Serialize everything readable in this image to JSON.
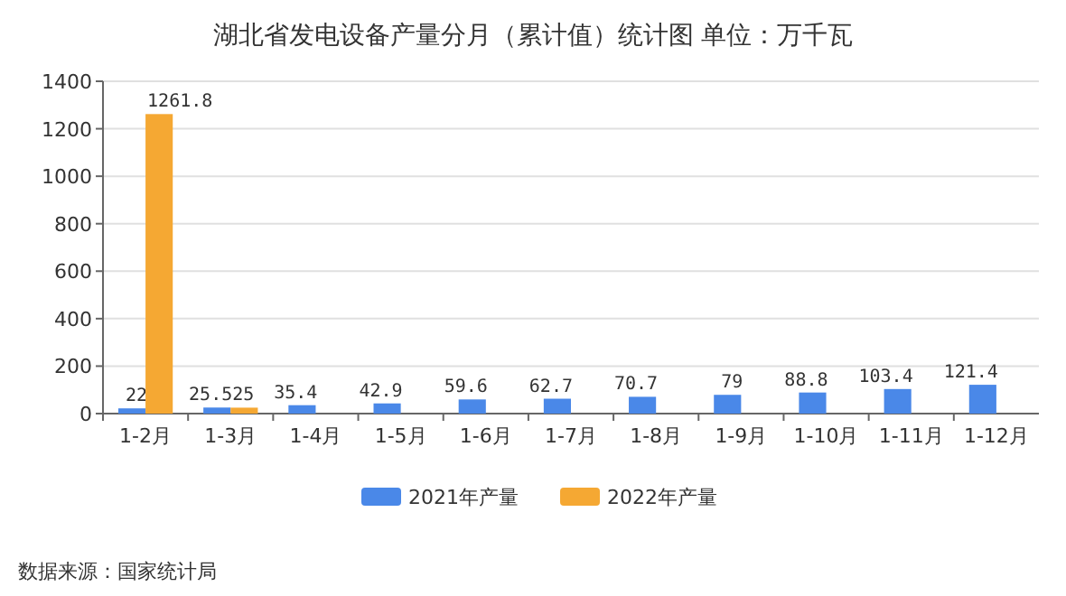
{
  "chart_data": {
    "type": "bar",
    "title": "湖北省发电设备产量分月（累计值）统计图 单位：万千瓦",
    "categories": [
      "1-2月",
      "1-3月",
      "1-4月",
      "1-5月",
      "1-6月",
      "1-7月",
      "1-8月",
      "1-9月",
      "1-10月",
      "1-11月",
      "1-12月"
    ],
    "series": [
      {
        "name": "2021年产量",
        "color": "#4a88e8",
        "values": [
          22,
          25.5,
          35.4,
          42.9,
          59.6,
          62.7,
          70.7,
          79,
          88.8,
          103.4,
          121.4
        ]
      },
      {
        "name": "2022年产量",
        "color": "#f5a833",
        "values": [
          1261.8,
          25,
          null,
          null,
          null,
          null,
          null,
          null,
          null,
          null,
          null
        ]
      }
    ],
    "ylim": [
      0,
      1400
    ],
    "yticks": [
      0,
      200,
      400,
      600,
      800,
      1000,
      1200,
      1400
    ],
    "grid": "y",
    "legend": "bottom",
    "data_labels": true,
    "annotations": [
      "数据来源：国家统计局"
    ]
  }
}
